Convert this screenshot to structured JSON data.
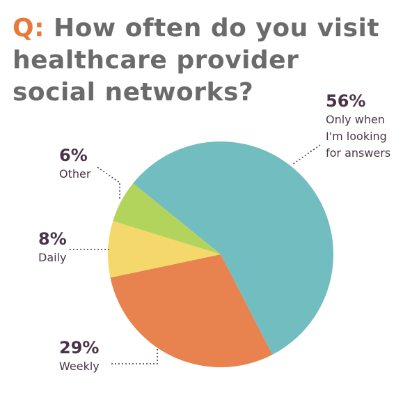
{
  "chart_data": {
    "type": "pie",
    "title_prefix": "Q:",
    "title": "How often do you visit healthcare provider social networks?",
    "categories": [
      "Only when I'm looking for answers",
      "Weekly",
      "Daily",
      "Other"
    ],
    "values": [
      56,
      29,
      8,
      6
    ],
    "value_labels": [
      "56%",
      "29%",
      "8%",
      "6%"
    ],
    "colors": [
      "#72bdbf",
      "#e8834f",
      "#f5d86c",
      "#b3d45c"
    ]
  }
}
